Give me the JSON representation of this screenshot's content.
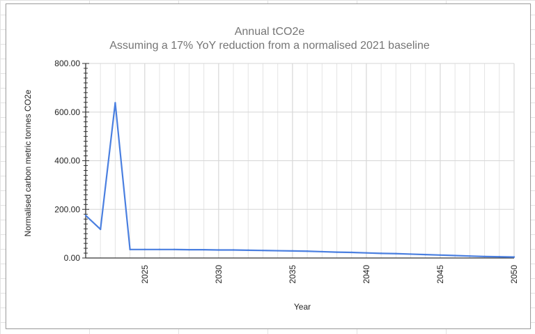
{
  "chart_data": {
    "type": "line",
    "title": "Annual tCO2e",
    "subtitle": "Assuming a 17% YoY reduction from a normalised 2021 baseline",
    "xlabel": "Year",
    "ylabel": "Normalised carbon metric tonnes CO2e",
    "xlim": [
      2021,
      2050
    ],
    "ylim": [
      0,
      800
    ],
    "x_ticks": [
      "2025",
      "2030",
      "2035",
      "2040",
      "2045",
      "2050"
    ],
    "y_ticks": [
      "0.00",
      "200.00",
      "400.00",
      "600.00",
      "800.00"
    ],
    "grid": true,
    "series": [
      {
        "color": "#4a7fe0",
        "x": [
          2021,
          2022,
          2023,
          2024,
          2025,
          2026,
          2027,
          2028,
          2029,
          2030,
          2031,
          2032,
          2033,
          2034,
          2035,
          2036,
          2037,
          2038,
          2039,
          2040,
          2041,
          2042,
          2043,
          2044,
          2045,
          2046,
          2047,
          2048,
          2049,
          2050
        ],
        "y": [
          175,
          118,
          638,
          35,
          35,
          35,
          35,
          34,
          34,
          33,
          33,
          32,
          31,
          30,
          29,
          28,
          26,
          24,
          23,
          21,
          19,
          18,
          16,
          14,
          12,
          10,
          8,
          6,
          5,
          4
        ]
      }
    ]
  }
}
